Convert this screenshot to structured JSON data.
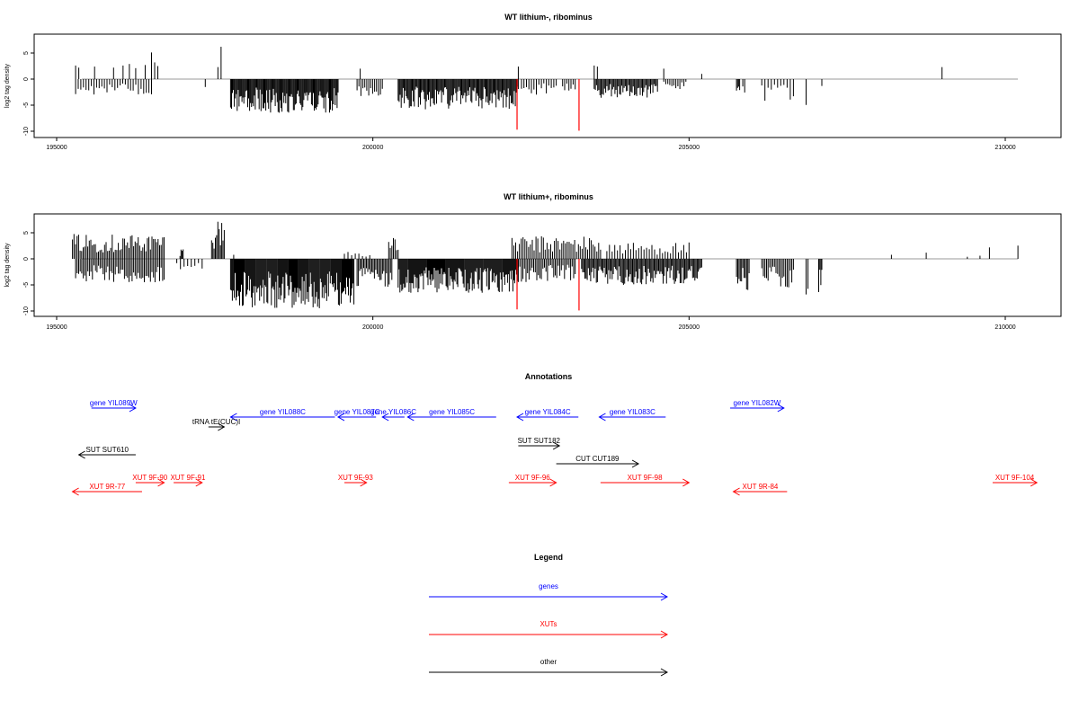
{
  "chart_data": [
    {
      "type": "bar",
      "title": "WT lithium-, ribominus",
      "ylabel": "log2 tag density",
      "xlim": [
        195000,
        210000
      ],
      "ylim": [
        -10,
        8
      ],
      "xticks": [
        "195000",
        "200000",
        "205000",
        "210000"
      ],
      "yticks": [
        "-10",
        "-5",
        "0",
        "5"
      ],
      "grid": false,
      "positive_tracks": [
        {
          "x": 195300,
          "y": 2.6
        },
        {
          "x": 195350,
          "y": 2.2
        },
        {
          "x": 195600,
          "y": 2.4
        },
        {
          "x": 195900,
          "y": 2.2
        },
        {
          "x": 196050,
          "y": 2.6
        },
        {
          "x": 196150,
          "y": 2.9
        },
        {
          "x": 196250,
          "y": 2.1
        },
        {
          "x": 196400,
          "y": 2.7
        },
        {
          "x": 196500,
          "y": 5.1
        },
        {
          "x": 196550,
          "y": 3.2
        },
        {
          "x": 196600,
          "y": 2.5
        },
        {
          "x": 197600,
          "y": 6.2
        },
        {
          "x": 197550,
          "y": 2.3
        },
        {
          "x": 199800,
          "y": 2.0
        },
        {
          "x": 203500,
          "y": 2.6
        },
        {
          "x": 203550,
          "y": 2.4
        },
        {
          "x": 204600,
          "y": 2.0
        },
        {
          "x": 202300,
          "y": 2.4
        },
        {
          "x": 205200,
          "y": 1.0
        },
        {
          "x": 209000,
          "y": 2.3
        }
      ],
      "negative_regions": [
        {
          "x0": 195300,
          "x1": 196500,
          "min": -3.0,
          "density": 0.35
        },
        {
          "x0": 197350,
          "x1": 197360,
          "min": -3.1,
          "density": 1.0
        },
        {
          "x0": 197750,
          "x1": 199450,
          "min": -6.5,
          "density": 0.95
        },
        {
          "x0": 199750,
          "x1": 200150,
          "min": -3.5,
          "density": 0.5
        },
        {
          "x0": 200400,
          "x1": 202300,
          "min": -5.8,
          "density": 0.9
        },
        {
          "x0": 202350,
          "x1": 202900,
          "min": -3.0,
          "density": 0.4
        },
        {
          "x0": 203000,
          "x1": 203200,
          "min": -2.5,
          "density": 0.5
        },
        {
          "x0": 203500,
          "x1": 204500,
          "min": -3.6,
          "density": 0.8
        },
        {
          "x0": 204600,
          "x1": 204950,
          "min": -2.0,
          "density": 0.5
        },
        {
          "x0": 205750,
          "x1": 205800,
          "min": -3.0,
          "density": 1.0
        },
        {
          "x0": 205850,
          "x1": 205880,
          "min": -3.6,
          "density": 1.0
        },
        {
          "x0": 206150,
          "x1": 206650,
          "min": -4.2,
          "density": 0.3
        },
        {
          "x0": 206850,
          "x1": 206860,
          "min": -5.5,
          "density": 1.0
        },
        {
          "x0": 207100,
          "x1": 207110,
          "min": -4.5,
          "density": 1.0
        }
      ],
      "red_markers": [
        {
          "x": 202280,
          "y": -9.7
        },
        {
          "x": 203260,
          "y": -9.9
        }
      ]
    },
    {
      "type": "bar",
      "title": "WT lithium+, ribominus",
      "ylabel": "log2 tag density",
      "xlim": [
        195000,
        210000
      ],
      "ylim": [
        -10,
        8
      ],
      "xticks": [
        "195000",
        "200000",
        "205000",
        "210000"
      ],
      "yticks": [
        "-10",
        "-5",
        "0",
        "5"
      ],
      "grid": false,
      "positive_regions": [
        {
          "x0": 195250,
          "x1": 196700,
          "max": 4.8,
          "density": 0.6
        },
        {
          "x0": 196950,
          "x1": 197000,
          "max": 2.2,
          "density": 1.0
        },
        {
          "x0": 197450,
          "x1": 197650,
          "max": 7.8,
          "density": 0.8
        },
        {
          "x0": 197800,
          "x1": 197820,
          "max": 2.1,
          "density": 1.0
        },
        {
          "x0": 199550,
          "x1": 199950,
          "max": 1.5,
          "density": 0.3
        },
        {
          "x0": 200250,
          "x1": 200400,
          "max": 4.0,
          "density": 0.7
        },
        {
          "x0": 202200,
          "x1": 203600,
          "max": 4.4,
          "density": 0.5
        },
        {
          "x0": 203700,
          "x1": 205000,
          "max": 3.2,
          "density": 0.35
        },
        {
          "x0": 208200,
          "x1": 208220,
          "max": 0.8,
          "density": 1.0
        },
        {
          "x0": 208750,
          "x1": 208770,
          "max": 1.3,
          "density": 1.0
        },
        {
          "x0": 209400,
          "x1": 209420,
          "max": 0.7,
          "density": 1.0
        },
        {
          "x0": 209600,
          "x1": 209620,
          "max": 0.9,
          "density": 1.0
        },
        {
          "x0": 209750,
          "x1": 209770,
          "max": 2.3,
          "density": 1.0
        },
        {
          "x0": 210200,
          "x1": 210220,
          "max": 2.9,
          "density": 1.0
        }
      ],
      "negative_regions": [
        {
          "x0": 195300,
          "x1": 196700,
          "min": -4.5,
          "density": 0.6
        },
        {
          "x0": 196900,
          "x1": 197300,
          "min": -2.0,
          "density": 0.3
        },
        {
          "x0": 197750,
          "x1": 199700,
          "min": -9.5,
          "density": 1.0
        },
        {
          "x0": 199750,
          "x1": 200300,
          "min": -5.5,
          "density": 0.7
        },
        {
          "x0": 200400,
          "x1": 202300,
          "min": -6.5,
          "density": 1.0
        },
        {
          "x0": 202300,
          "x1": 203200,
          "min": -4.5,
          "density": 0.6
        },
        {
          "x0": 203300,
          "x1": 205200,
          "min": -5.0,
          "density": 0.8
        },
        {
          "x0": 205750,
          "x1": 205950,
          "min": -6.5,
          "density": 0.8
        },
        {
          "x0": 206150,
          "x1": 206650,
          "min": -5.8,
          "density": 0.6
        },
        {
          "x0": 206850,
          "x1": 206880,
          "min": -8.0,
          "density": 1.0
        },
        {
          "x0": 207050,
          "x1": 207100,
          "min": -7.8,
          "density": 1.0
        }
      ],
      "red_markers": [
        {
          "x": 202280,
          "y": -9.7
        },
        {
          "x": 203260,
          "y": -9.9
        }
      ]
    },
    {
      "type": "annotation_track",
      "title": "Annotations",
      "xlim": [
        195000,
        210000
      ],
      "features": [
        {
          "label": "gene YIL089W",
          "color": "#0000ff",
          "strand": "+",
          "start": 195550,
          "end": 196250,
          "row": 1
        },
        {
          "label": "gene YIL088C",
          "color": "#0000ff",
          "strand": "-",
          "start": 197750,
          "end": 199400,
          "row": 2
        },
        {
          "label": "gene YIL087C",
          "color": "#0000ff",
          "strand": "-",
          "start": 199450,
          "end": 200050,
          "row": 2
        },
        {
          "label": "gene YIL086C",
          "color": "#0000ff",
          "strand": "-",
          "start": 200150,
          "end": 200500,
          "row": 2
        },
        {
          "label": "gene YIL085C",
          "color": "#0000ff",
          "strand": "-",
          "start": 200550,
          "end": 201950,
          "row": 2
        },
        {
          "label": "gene YIL084C",
          "color": "#0000ff",
          "strand": "-",
          "start": 202280,
          "end": 203250,
          "row": 2
        },
        {
          "label": "gene YIL083C",
          "color": "#0000ff",
          "strand": "-",
          "start": 203580,
          "end": 204630,
          "row": 2
        },
        {
          "label": "gene YIL082W",
          "color": "#0000ff",
          "strand": "+",
          "start": 205650,
          "end": 206500,
          "row": 1
        },
        {
          "label": "tRNA tE(CUC)I",
          "color": "#000000",
          "strand": "+",
          "start": 197400,
          "end": 197650,
          "row": 3
        },
        {
          "label": "SUT SUT610",
          "color": "#000000",
          "strand": "-",
          "start": 195350,
          "end": 196250,
          "row": 4
        },
        {
          "label": "SUT SUT182",
          "color": "#000000",
          "strand": "+",
          "start": 202300,
          "end": 202950,
          "row": 5
        },
        {
          "label": "CUT CUT189",
          "color": "#000000",
          "strand": "+",
          "start": 202900,
          "end": 204200,
          "row": 6
        },
        {
          "label": "XUT 9F-90",
          "color": "#ff0000",
          "strand": "+",
          "start": 196250,
          "end": 196700,
          "row": 7
        },
        {
          "label": "XUT 9F-91",
          "color": "#ff0000",
          "strand": "+",
          "start": 196850,
          "end": 197300,
          "row": 7
        },
        {
          "label": "XUT 9F-93",
          "color": "#ff0000",
          "strand": "+",
          "start": 199550,
          "end": 199900,
          "row": 7
        },
        {
          "label": "XUT 9F-96",
          "color": "#ff0000",
          "strand": "+",
          "start": 202150,
          "end": 202900,
          "row": 7
        },
        {
          "label": "XUT 9F-98",
          "color": "#ff0000",
          "strand": "+",
          "start": 203600,
          "end": 205000,
          "row": 7
        },
        {
          "label": "XUT 9F-104",
          "color": "#ff0000",
          "strand": "+",
          "start": 209800,
          "end": 210500,
          "row": 7
        },
        {
          "label": "XUT 9R-77",
          "color": "#ff0000",
          "strand": "-",
          "start": 195250,
          "end": 196350,
          "row": 8
        },
        {
          "label": "XUT 9R-84",
          "color": "#ff0000",
          "strand": "-",
          "start": 205700,
          "end": 206550,
          "row": 8
        }
      ]
    },
    {
      "type": "legend",
      "title": "Legend",
      "entries": [
        {
          "label": "genes",
          "color": "#0000ff"
        },
        {
          "label": "XUTs",
          "color": "#ff0000"
        },
        {
          "label": "other",
          "color": "#000000"
        }
      ]
    }
  ]
}
